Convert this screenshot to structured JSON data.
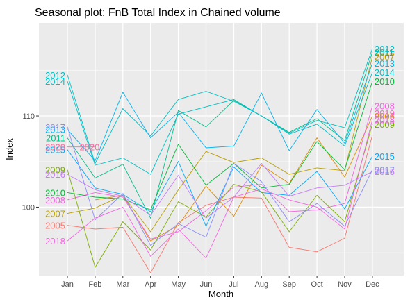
{
  "chart_data": {
    "type": "line",
    "title": "Seasonal plot: FnB Total Index in Chained volume",
    "xlabel": "Month",
    "ylabel": "Index",
    "categories": [
      "Jan",
      "Feb",
      "Mar",
      "Apr",
      "May",
      "Jun",
      "Jul",
      "Aug",
      "Sep",
      "Oct",
      "Nov",
      "Dec"
    ],
    "ylim": [
      92.5,
      120.2
    ],
    "yticks": [
      100,
      110
    ],
    "grid": true,
    "legend": "none",
    "series": [
      {
        "name": "2005",
        "color": "#F8766D",
        "start_label_y": 98.0,
        "end_label_y": null,
        "values": [
          98.0,
          97.6,
          97.8,
          92.8,
          98.3,
          100.2,
          101.1,
          101.0,
          95.6,
          95.1,
          96.6,
          107.9
        ]
      },
      {
        "name": "2006",
        "color": "#DE8C00",
        "start_label_y": null,
        "end_label_y": 110.0,
        "values": [
          null,
          100.8,
          101.3,
          96.3,
          98.0,
          102.3,
          99.0,
          104.6,
          102.6,
          107.6,
          103.3,
          110.0
        ]
      },
      {
        "name": "2007",
        "color": "#B79F00",
        "start_label_y": 99.3,
        "end_label_y": 116.5,
        "values": [
          99.3,
          99.9,
          101.3,
          97.3,
          101.9,
          106.1,
          104.9,
          105.4,
          103.6,
          104.3,
          104.0,
          116.5
        ]
      },
      {
        "name": "2008",
        "color": "#F564E3",
        "start_label_y": 100.8,
        "end_label_y": 111.1,
        "values": [
          100.8,
          101.6,
          101.1,
          96.5,
          97.3,
          99.6,
          102.2,
          102.5,
          99.5,
          99.7,
          100.4,
          111.1
        ]
      },
      {
        "name": "2009",
        "color": "#7CAE00",
        "start_label_y": 104.1,
        "end_label_y": 109.1,
        "values": [
          104.1,
          93.4,
          98.4,
          95.3,
          100.6,
          98.9,
          102.5,
          101.7,
          97.3,
          101.3,
          98.4,
          109.1
        ]
      },
      {
        "name": "2010",
        "color": "#00BA38",
        "start_label_y": 101.6,
        "end_label_y": 113.8,
        "values": [
          101.6,
          101.1,
          100.9,
          99.7,
          106.9,
          102.4,
          104.8,
          102.1,
          102.5,
          107.2,
          104.1,
          113.8
        ]
      },
      {
        "name": "2011",
        "color": "#00C08B",
        "start_label_y": 107.6,
        "end_label_y": 117.0,
        "values": [
          107.6,
          103.2,
          104.7,
          98.8,
          110.6,
          108.8,
          111.7,
          110.0,
          108.2,
          109.7,
          107.3,
          117.0
        ]
      },
      {
        "name": "2012",
        "color": "#00BFC4",
        "start_label_y": 114.5,
        "end_label_y": 117.4,
        "values": [
          114.5,
          104.8,
          110.8,
          107.8,
          111.8,
          112.7,
          111.6,
          110.0,
          108.1,
          109.5,
          108.7,
          117.4
        ]
      },
      {
        "name": "2013",
        "color": "#00B4F0",
        "start_label_y": 108.5,
        "end_label_y": 115.8,
        "values": [
          108.5,
          105.1,
          112.6,
          107.6,
          110.4,
          106.5,
          106.7,
          112.5,
          106.2,
          110.7,
          107.0,
          115.8
        ]
      },
      {
        "name": "2014",
        "color": "#00BFC4",
        "start_label_y": 113.8,
        "end_label_y": 114.8,
        "values": [
          113.8,
          104.6,
          105.4,
          103.6,
          110.2,
          111.0,
          111.8,
          110.0,
          108.0,
          109.1,
          106.7,
          114.8
        ]
      },
      {
        "name": "2015",
        "color": "#00A9FF",
        "start_label_y": 106.3,
        "end_label_y": 105.6,
        "values": [
          106.3,
          102.1,
          101.4,
          99.5,
          105.0,
          97.9,
          104.4,
          101.6,
          101.3,
          103.9,
          99.8,
          105.6
        ]
      },
      {
        "name": "2016",
        "color": "#C77CFF",
        "start_label_y": 103.6,
        "end_label_y": 103.9,
        "values": [
          103.6,
          101.9,
          101.2,
          99.1,
          103.5,
          98.8,
          101.1,
          104.8,
          101.2,
          102.1,
          102.4,
          103.9
        ]
      },
      {
        "name": "2017",
        "color": "#8B8BFF",
        "start_label_y": 108.8,
        "end_label_y": 104.1,
        "values": [
          108.8,
          98.6,
          101.5,
          95.8,
          98.2,
          96.7,
          104.8,
          102.8,
          98.4,
          100.4,
          97.9,
          104.1
        ]
      },
      {
        "name": "2018",
        "color": "#F564E3",
        "start_label_y": 96.3,
        "end_label_y": 109.6,
        "values": [
          96.3,
          98.8,
          100.0,
          94.6,
          97.6,
          94.4,
          101.1,
          102.0,
          100.8,
          100.0,
          97.6,
          109.6
        ]
      },
      {
        "name": "2019",
        "color": "#FF61C3",
        "start_label_y": null,
        "end_label_y": 110.3,
        "values": [
          null,
          null,
          null,
          null,
          null,
          null,
          null,
          null,
          null,
          null,
          null,
          110.3
        ]
      },
      {
        "name": "2020",
        "color": "#FF689F",
        "start_label_y": 106.6,
        "end_label_y": null,
        "values": [
          106.6,
          106.6,
          null,
          null,
          null,
          null,
          null,
          null,
          null,
          null,
          null,
          null
        ]
      }
    ]
  }
}
